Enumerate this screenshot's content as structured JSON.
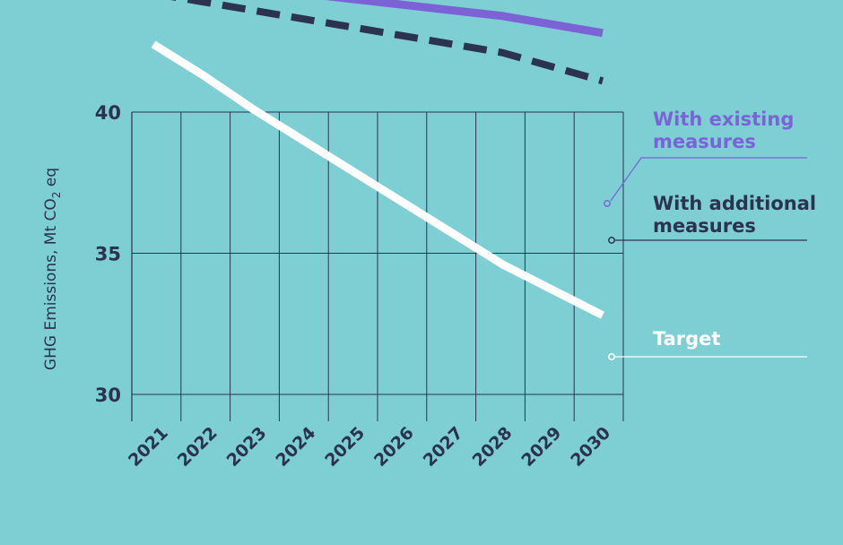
{
  "chart_data": {
    "type": "line",
    "title": "",
    "xlabel": "",
    "ylabel": "GHG Emissions, Mt CO2 eq",
    "ylabel_main": "GHG Emissions, Mt CO",
    "ylabel_sub": "2",
    "ylabel_tail": " eq",
    "x": [
      "2021",
      "2022",
      "2023",
      "2024",
      "2025",
      "2026",
      "2027",
      "2028",
      "2029",
      "2030"
    ],
    "ylim": [
      30,
      50
    ],
    "yticks": [
      "30",
      "35",
      "40",
      "45",
      "50"
    ],
    "grid": true,
    "legend_placement": "right",
    "series": [
      {
        "name": "With existing measures",
        "label_lines": [
          "With existing",
          "measures"
        ],
        "style": "solid",
        "color": "#7b63d6",
        "values": [
          44.8,
          44.6,
          44.4,
          44.2,
          44.0,
          43.8,
          43.6,
          43.4,
          43.1,
          42.8
        ]
      },
      {
        "name": "With additional measures",
        "label_lines": [
          "With additional",
          "measures"
        ],
        "style": "dashed",
        "color": "#2b3350",
        "values": [
          44.2,
          43.9,
          43.6,
          43.3,
          43.0,
          42.7,
          42.4,
          42.1,
          41.6,
          41.1
        ]
      },
      {
        "name": "Target",
        "label_lines": [
          "Target"
        ],
        "style": "solid",
        "color": "#ffffff",
        "values": [
          42.4,
          41.3,
          40.1,
          39.0,
          37.9,
          36.8,
          35.7,
          34.6,
          33.7,
          32.8
        ]
      }
    ]
  }
}
